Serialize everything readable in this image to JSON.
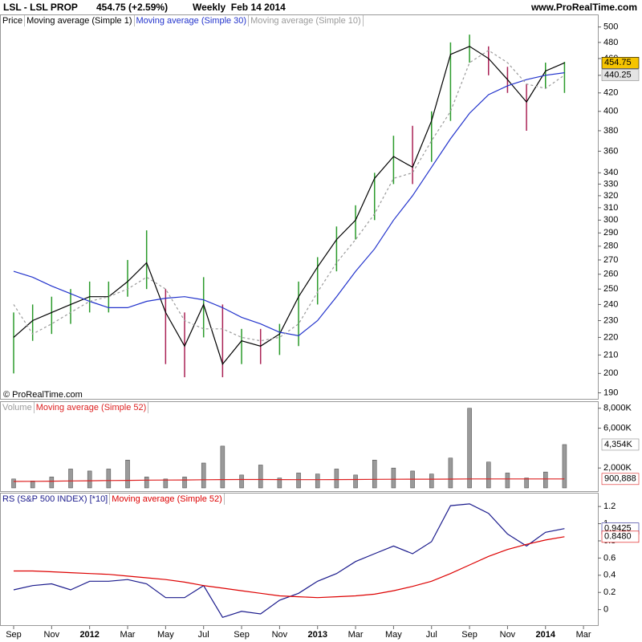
{
  "header": {
    "symbol": "LSL - LSL PROP",
    "quote": "454.75 (+2.59%)",
    "period": "Weekly  Feb 14 2014",
    "site": "www.ProRealTime.com"
  },
  "chart_data": [
    {
      "type": "ohlc",
      "legend_title": "Price",
      "copyright": "© ProRealTime.com",
      "log_scale": true,
      "ylim": [
        187,
        506
      ],
      "yticks": [
        190,
        200,
        210,
        220,
        230,
        240,
        250,
        260,
        270,
        280,
        290,
        300,
        310,
        320,
        330,
        340,
        360,
        380,
        400,
        420,
        440,
        460,
        480,
        500
      ],
      "up_color": "#2a9a2a",
      "down_color": "#aa2255",
      "high": [
        235,
        240,
        245,
        250,
        255,
        255,
        270,
        292,
        250,
        235,
        258,
        240,
        225,
        225,
        228,
        255,
        272,
        295,
        312,
        340,
        375,
        385,
        400,
        480,
        490,
        475,
        450,
        430,
        455,
        456,
        null
      ],
      "low": [
        200,
        218,
        222,
        228,
        235,
        235,
        245,
        250,
        205,
        198,
        220,
        198,
        205,
        205,
        210,
        215,
        240,
        262,
        285,
        300,
        330,
        330,
        350,
        390,
        455,
        440,
        420,
        380,
        425,
        420,
        null
      ],
      "series": [
        {
          "name": "Moving average (Simple 1)",
          "color": "#000000",
          "values": [
            220,
            230,
            235,
            240,
            245,
            245,
            255,
            268,
            235,
            215,
            240,
            205,
            218,
            215,
            222,
            245,
            265,
            285,
            300,
            335,
            355,
            345,
            390,
            465,
            475,
            460,
            435,
            410,
            445,
            454.75,
            null
          ]
        },
        {
          "name": "Moving average (Simple 30)",
          "color": "#2233cc",
          "values": [
            262,
            258,
            252,
            247,
            242,
            238,
            238,
            242,
            244,
            245,
            243,
            238,
            232,
            228,
            223,
            221,
            230,
            245,
            262,
            278,
            300,
            320,
            345,
            372,
            398,
            418,
            428,
            435,
            440,
            443,
            null
          ]
        },
        {
          "name": "Moving average (Simple 10)",
          "color": "#9a9a9a",
          "dashed": true,
          "values": [
            240,
            222,
            228,
            235,
            242,
            245,
            250,
            258,
            250,
            230,
            225,
            225,
            220,
            218,
            220,
            228,
            248,
            268,
            285,
            305,
            335,
            340,
            370,
            400,
            455,
            470,
            455,
            430,
            425,
            440.25,
            null
          ]
        }
      ],
      "tags": [
        {
          "value": 454.75,
          "label": "454.75",
          "fill": "#f5c400",
          "text_color": "#000000"
        },
        {
          "value": 440.25,
          "label": "440.25",
          "fill": "#e4e4e4",
          "text_color": "#888888"
        }
      ]
    },
    {
      "type": "bar",
      "ylim": [
        0,
        8300000
      ],
      "yticks": [
        {
          "value": 2000000,
          "label": "2,000K"
        },
        {
          "value": 6000000,
          "label": "6,000K"
        },
        {
          "value": 8000000,
          "label": "8,000K"
        }
      ],
      "series": [
        {
          "name": "Volume",
          "color": "#9a9a9a",
          "values": [
            900000,
            700000,
            1100000,
            1900000,
            1700000,
            1900000,
            2800000,
            1100000,
            900000,
            1100000,
            2500000,
            4200000,
            1300000,
            2300000,
            1000000,
            1500000,
            1400000,
            1900000,
            1300000,
            2800000,
            2000000,
            1700000,
            1400000,
            3000000,
            8000000,
            2600000,
            1500000,
            1000000,
            1600000,
            4354000,
            null
          ]
        },
        {
          "name": "Moving average (Simple 52)",
          "color": "#dd2222",
          "style": "line",
          "values": [
            650000,
            660000,
            680000,
            700000,
            720000,
            740000,
            760000,
            780000,
            790000,
            800000,
            820000,
            840000,
            850000,
            850000,
            840000,
            830000,
            830000,
            840000,
            850000,
            860000,
            870000,
            880000,
            880000,
            890000,
            900000,
            900000,
            900000,
            900000,
            900000,
            900888,
            null
          ]
        }
      ],
      "tags": [
        {
          "value": 4354000,
          "label": "4,354K",
          "fill": "#ffffff",
          "text_color": "#888888"
        },
        {
          "value": 900888,
          "label": "900,888",
          "fill": "#ffffff",
          "text_color": "#dd2222"
        }
      ]
    },
    {
      "type": "line",
      "ylim": [
        -0.19,
        1.36
      ],
      "yticks": [
        0,
        0.2,
        0.4,
        0.6,
        0.8,
        1,
        1.2
      ],
      "categories": [
        "Sep",
        null,
        "Nov",
        null,
        "2012",
        null,
        "Mar",
        null,
        "May",
        null,
        "Jul",
        null,
        "Sep",
        null,
        "Nov",
        null,
        "2013",
        null,
        "Mar",
        null,
        "May",
        null,
        "Jul",
        null,
        "Sep",
        null,
        "Nov",
        null,
        "2014",
        null,
        "Mar"
      ],
      "series": [
        {
          "name": "RS (S&P 500 INDEX) [*10]",
          "color": "#1a1a8c",
          "values": [
            0.23,
            0.28,
            0.3,
            0.23,
            0.33,
            0.33,
            0.35,
            0.3,
            0.14,
            0.14,
            0.28,
            -0.09,
            -0.02,
            -0.05,
            0.11,
            0.19,
            0.33,
            0.42,
            0.56,
            0.65,
            0.74,
            0.65,
            0.79,
            1.21,
            1.23,
            1.12,
            0.88,
            0.74,
            0.9,
            0.9425,
            null
          ]
        },
        {
          "name": "Moving average (Simple 52)",
          "color": "#dd0000",
          "values": [
            0.45,
            0.45,
            0.44,
            0.43,
            0.42,
            0.41,
            0.39,
            0.37,
            0.35,
            0.32,
            0.28,
            0.25,
            0.22,
            0.19,
            0.16,
            0.15,
            0.14,
            0.15,
            0.16,
            0.18,
            0.22,
            0.27,
            0.33,
            0.42,
            0.52,
            0.62,
            0.7,
            0.76,
            0.81,
            0.848,
            null
          ]
        }
      ],
      "tags": [
        {
          "value": 0.9425,
          "label": "0.9425",
          "fill": "#ffffff",
          "text_color": "#1a1a8c"
        },
        {
          "value": 0.848,
          "label": "0.8480",
          "fill": "#ffffff",
          "text_color": "#dd0000"
        }
      ]
    }
  ]
}
